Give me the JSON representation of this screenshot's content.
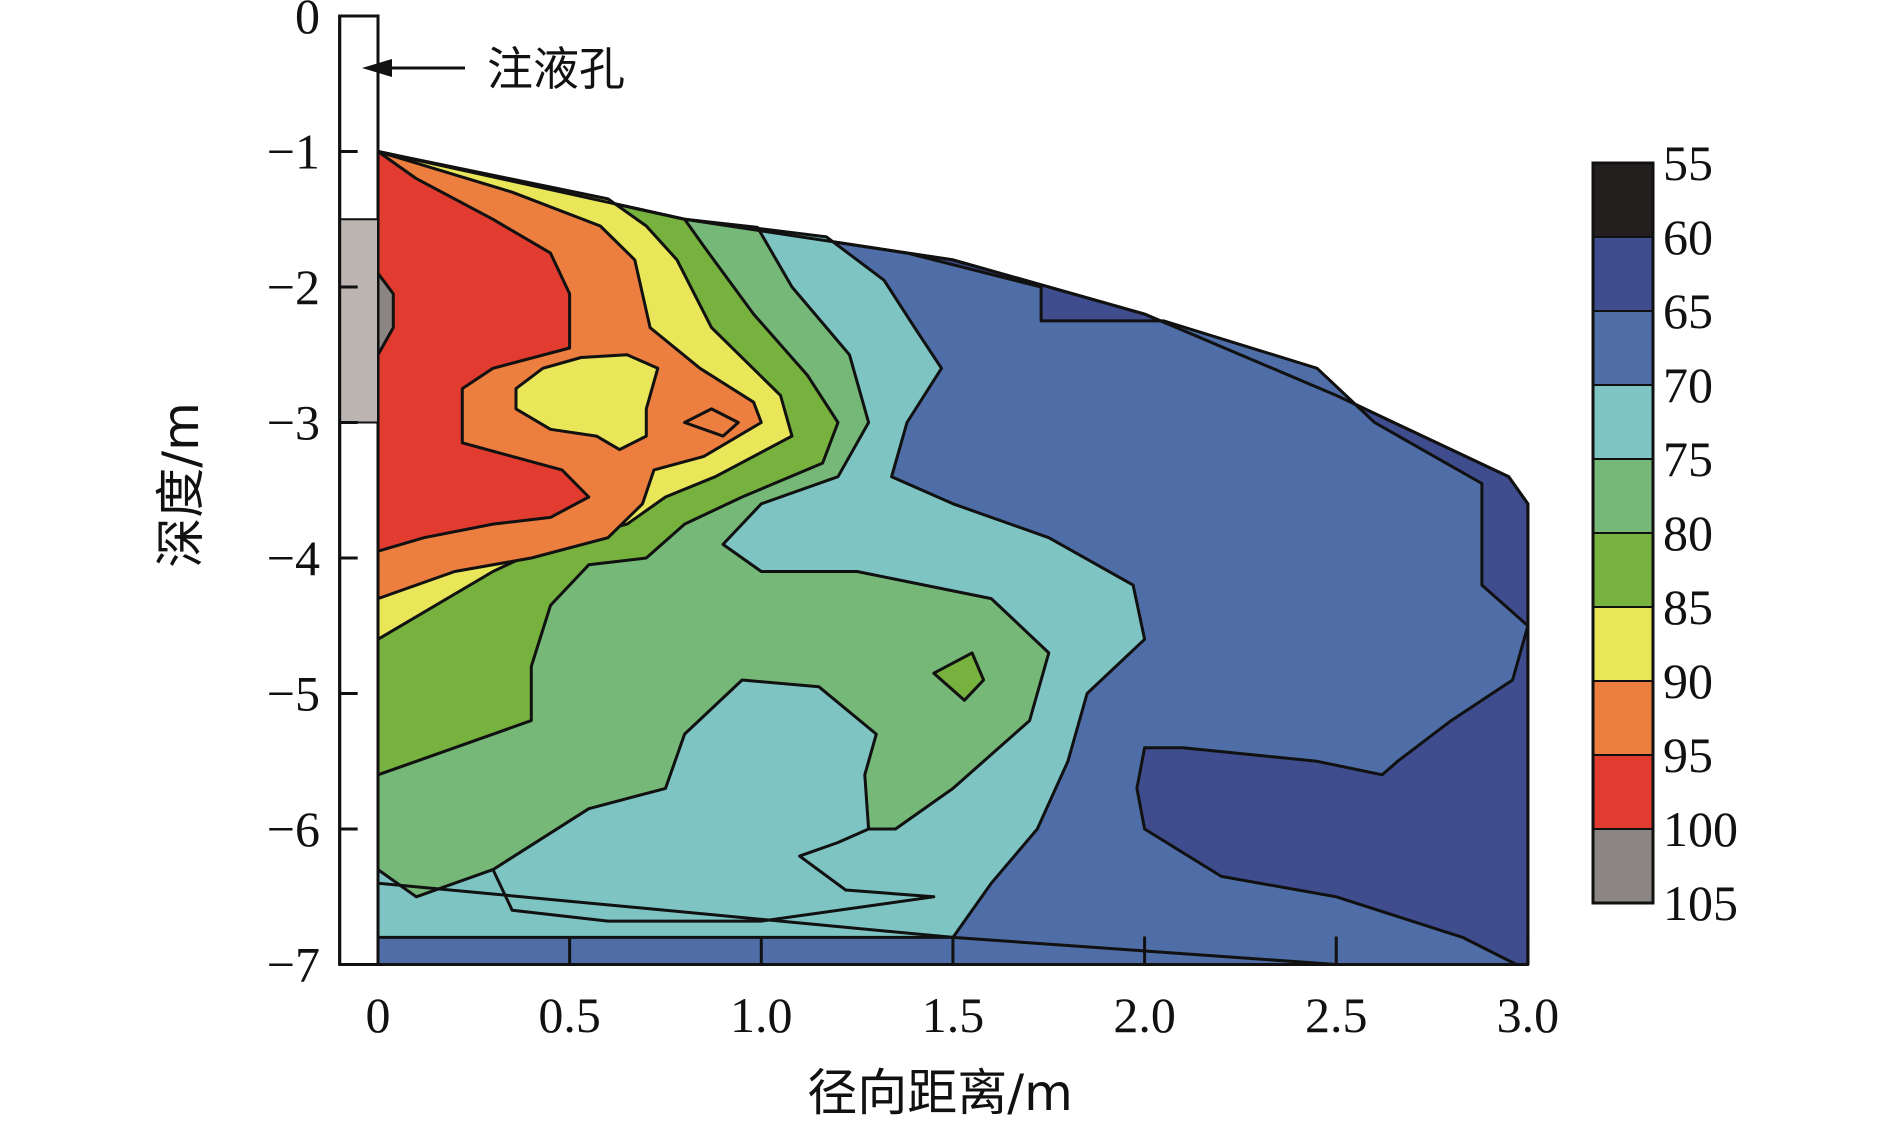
{
  "chart_data": {
    "type": "heatmap",
    "title": "",
    "xlabel": "径向距离/m",
    "ylabel": "深度/m",
    "x_ticks": [
      {
        "value": 0,
        "label": "0"
      },
      {
        "value": 0.5,
        "label": "0.5"
      },
      {
        "value": 1.0,
        "label": "1.0"
      },
      {
        "value": 1.5,
        "label": "1.5"
      },
      {
        "value": 2.0,
        "label": "2.0"
      },
      {
        "value": 2.5,
        "label": "2.5"
      },
      {
        "value": 3.0,
        "label": "3.0"
      }
    ],
    "y_ticks": [
      {
        "value": 0,
        "label": "0"
      },
      {
        "value": -1,
        "label": "−1"
      },
      {
        "value": -2,
        "label": "−2"
      },
      {
        "value": -3,
        "label": "−3"
      },
      {
        "value": -4,
        "label": "−4"
      },
      {
        "value": -5,
        "label": "−5"
      },
      {
        "value": -6,
        "label": "−6"
      },
      {
        "value": -7,
        "label": "−7"
      }
    ],
    "xlim": [
      -0.1,
      3.0
    ],
    "ylim": [
      -7,
      0
    ],
    "grid": false,
    "legend_position": "right",
    "colorbar": {
      "levels": [
        {
          "label": "55",
          "color": "#231f1e"
        },
        {
          "label": "60",
          "color": "#3f4c8e"
        },
        {
          "label": "65",
          "color": "#4f6ea7"
        },
        {
          "label": "70",
          "color": "#7ec4c3"
        },
        {
          "label": "75",
          "color": "#76b878"
        },
        {
          "label": "80",
          "color": "#77b13e"
        },
        {
          "label": "85",
          "color": "#e9e65a"
        },
        {
          "label": "90",
          "color": "#ec7e3f"
        },
        {
          "label": "95",
          "color": "#e13c2f"
        },
        {
          "label": "100",
          "color": "#8b8684"
        },
        {
          "label": "105",
          "color": ""
        }
      ]
    },
    "injection_hole": {
      "label": "注液孔",
      "screen_interval": [
        -1.5,
        -3.0
      ],
      "screen_color": "#bcb4b1"
    },
    "regions": [
      {
        "band": "60-65",
        "color": "#3f4c8e",
        "points": [
          [
            0.0,
            -1.0
          ],
          [
            0.8,
            -1.5
          ],
          [
            1.5,
            -1.8
          ],
          [
            2.0,
            -2.2
          ],
          [
            2.5,
            -2.8
          ],
          [
            2.95,
            -3.4
          ],
          [
            3.0,
            -3.6
          ],
          [
            3.0,
            -7.0
          ],
          [
            0.0,
            -7.0
          ]
        ]
      },
      {
        "band": "65-70",
        "color": "#4f6ea7",
        "points": [
          [
            0.0,
            -1.0
          ],
          [
            0.8,
            -1.5
          ],
          [
            1.38,
            -1.75
          ],
          [
            1.73,
            -2.0
          ],
          [
            1.73,
            -2.25
          ],
          [
            2.05,
            -2.25
          ],
          [
            2.45,
            -2.6
          ],
          [
            2.6,
            -3.0
          ],
          [
            2.88,
            -3.45
          ],
          [
            2.88,
            -4.2
          ],
          [
            3.0,
            -4.5
          ],
          [
            2.96,
            -4.9
          ],
          [
            2.8,
            -5.2
          ],
          [
            2.66,
            -5.5
          ],
          [
            2.62,
            -5.6
          ],
          [
            2.45,
            -5.5
          ],
          [
            2.1,
            -5.4
          ],
          [
            2.0,
            -5.4
          ],
          [
            1.98,
            -5.7
          ],
          [
            2.0,
            -6.0
          ],
          [
            2.2,
            -6.35
          ],
          [
            2.5,
            -6.5
          ],
          [
            2.83,
            -6.8
          ],
          [
            2.97,
            -7.0
          ],
          [
            0.0,
            -7.0
          ]
        ]
      },
      {
        "band": "70-75",
        "color": "#7ec4c3",
        "points": [
          [
            0.0,
            -1.0
          ],
          [
            0.8,
            -1.5
          ],
          [
            1.17,
            -1.63
          ],
          [
            1.32,
            -1.95
          ],
          [
            1.4,
            -2.3
          ],
          [
            1.47,
            -2.6
          ],
          [
            1.38,
            -3.0
          ],
          [
            1.34,
            -3.4
          ],
          [
            1.5,
            -3.6
          ],
          [
            1.75,
            -3.85
          ],
          [
            1.97,
            -4.2
          ],
          [
            2.0,
            -4.6
          ],
          [
            1.85,
            -5.0
          ],
          [
            1.8,
            -5.5
          ],
          [
            1.72,
            -6.0
          ],
          [
            1.6,
            -6.4
          ],
          [
            1.5,
            -6.8
          ],
          [
            0.0,
            -6.8
          ]
        ]
      },
      {
        "band": "75-80",
        "color": "#76b878",
        "points": [
          [
            0.0,
            -1.0
          ],
          [
            0.8,
            -1.5
          ],
          [
            0.99,
            -1.56
          ],
          [
            1.08,
            -2.0
          ],
          [
            1.23,
            -2.5
          ],
          [
            1.28,
            -3.0
          ],
          [
            1.2,
            -3.4
          ],
          [
            1.0,
            -3.6
          ],
          [
            0.9,
            -3.9
          ],
          [
            1.0,
            -4.1
          ],
          [
            1.25,
            -4.1
          ],
          [
            1.6,
            -4.3
          ],
          [
            1.75,
            -4.7
          ],
          [
            1.7,
            -5.2
          ],
          [
            1.5,
            -5.7
          ],
          [
            1.35,
            -6.0
          ],
          [
            1.1,
            -6.0
          ],
          [
            0.95,
            -6.2
          ],
          [
            0.6,
            -6.3
          ],
          [
            0.3,
            -6.3
          ],
          [
            0.1,
            -6.5
          ],
          [
            0.0,
            -6.3
          ]
        ]
      },
      {
        "band": "70-75 pocket",
        "color": "#7ec4c3",
        "points": [
          [
            0.3,
            -6.3
          ],
          [
            0.55,
            -5.85
          ],
          [
            0.75,
            -5.7
          ],
          [
            0.8,
            -5.3
          ],
          [
            0.95,
            -4.9
          ],
          [
            1.15,
            -4.95
          ],
          [
            1.3,
            -5.3
          ],
          [
            1.27,
            -5.6
          ],
          [
            1.28,
            -6.0
          ],
          [
            1.2,
            -6.1
          ],
          [
            1.1,
            -6.2
          ],
          [
            1.22,
            -6.45
          ],
          [
            1.45,
            -6.5
          ],
          [
            1.0,
            -6.68
          ],
          [
            0.6,
            -6.68
          ],
          [
            0.35,
            -6.6
          ]
        ]
      },
      {
        "band": "80-85 spot",
        "color": "#77b13e",
        "points": [
          [
            1.45,
            -4.85
          ],
          [
            1.55,
            -4.7
          ],
          [
            1.58,
            -4.9
          ],
          [
            1.53,
            -5.05
          ]
        ]
      },
      {
        "band": "80-85",
        "color": "#77b13e",
        "points": [
          [
            0.0,
            -1.0
          ],
          [
            0.8,
            -1.5
          ],
          [
            0.85,
            -1.7
          ],
          [
            0.98,
            -2.2
          ],
          [
            1.12,
            -2.65
          ],
          [
            1.2,
            -3.0
          ],
          [
            1.16,
            -3.3
          ],
          [
            0.95,
            -3.55
          ],
          [
            0.8,
            -3.75
          ],
          [
            0.7,
            -4.0
          ],
          [
            0.55,
            -4.05
          ],
          [
            0.45,
            -4.35
          ],
          [
            0.4,
            -4.8
          ],
          [
            0.4,
            -5.2
          ],
          [
            0.1,
            -5.5
          ],
          [
            0.0,
            -5.6
          ]
        ]
      },
      {
        "band": "85-90",
        "color": "#e9e65a",
        "points": [
          [
            0.0,
            -1.0
          ],
          [
            0.6,
            -1.35
          ],
          [
            0.7,
            -1.55
          ],
          [
            0.78,
            -1.8
          ],
          [
            0.87,
            -2.3
          ],
          [
            1.05,
            -2.8
          ],
          [
            1.08,
            -3.1
          ],
          [
            0.88,
            -3.4
          ],
          [
            0.75,
            -3.55
          ],
          [
            0.65,
            -3.75
          ],
          [
            0.45,
            -3.9
          ],
          [
            0.3,
            -4.1
          ],
          [
            0.0,
            -4.6
          ]
        ]
      },
      {
        "band": "90-95",
        "color": "#ec7e3f",
        "points": [
          [
            0.0,
            -1.0
          ],
          [
            0.35,
            -1.3
          ],
          [
            0.58,
            -1.55
          ],
          [
            0.67,
            -1.8
          ],
          [
            0.71,
            -2.3
          ],
          [
            0.84,
            -2.6
          ],
          [
            0.98,
            -2.85
          ],
          [
            1.0,
            -3.0
          ],
          [
            0.85,
            -3.25
          ],
          [
            0.72,
            -3.35
          ],
          [
            0.69,
            -3.6
          ],
          [
            0.6,
            -3.85
          ],
          [
            0.4,
            -4.0
          ],
          [
            0.2,
            -4.1
          ],
          [
            0.0,
            -4.3
          ]
        ]
      },
      {
        "band": "85-90 pocket",
        "color": "#e9e65a",
        "points": [
          [
            0.36,
            -2.75
          ],
          [
            0.43,
            -2.6
          ],
          [
            0.53,
            -2.52
          ],
          [
            0.65,
            -2.5
          ],
          [
            0.73,
            -2.6
          ],
          [
            0.7,
            -2.9
          ],
          [
            0.7,
            -3.1
          ],
          [
            0.63,
            -3.2
          ],
          [
            0.57,
            -3.1
          ],
          [
            0.45,
            -3.05
          ],
          [
            0.36,
            -2.9
          ]
        ]
      },
      {
        "band": "90-95 spot",
        "color": "#ec7e3f",
        "points": [
          [
            0.8,
            -3.0
          ],
          [
            0.87,
            -2.9
          ],
          [
            0.94,
            -3.0
          ],
          [
            0.9,
            -3.1
          ]
        ]
      },
      {
        "band": "95-100",
        "color": "#e13c2f",
        "points": [
          [
            0.0,
            -1.0
          ],
          [
            0.1,
            -1.2
          ],
          [
            0.3,
            -1.5
          ],
          [
            0.45,
            -1.75
          ],
          [
            0.5,
            -2.05
          ],
          [
            0.5,
            -2.45
          ],
          [
            0.3,
            -2.6
          ],
          [
            0.22,
            -2.75
          ],
          [
            0.22,
            -3.15
          ],
          [
            0.35,
            -3.25
          ],
          [
            0.48,
            -3.35
          ],
          [
            0.55,
            -3.55
          ],
          [
            0.45,
            -3.7
          ],
          [
            0.3,
            -3.75
          ],
          [
            0.12,
            -3.85
          ],
          [
            0.0,
            -3.95
          ]
        ]
      },
      {
        "band": "100-105",
        "color": "#8b8684",
        "points": [
          [
            0.0,
            -1.9
          ],
          [
            0.04,
            -2.05
          ],
          [
            0.04,
            -2.3
          ],
          [
            0.0,
            -2.5
          ]
        ]
      }
    ]
  }
}
